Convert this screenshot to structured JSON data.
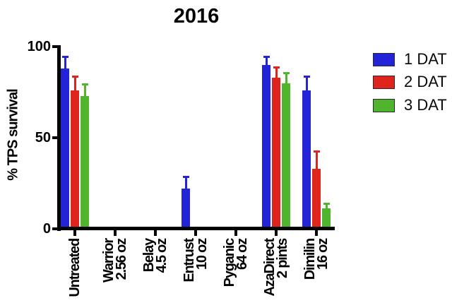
{
  "chart_data": {
    "type": "bar",
    "title": "2016",
    "xlabel": "",
    "ylabel": "% TPS survival",
    "ylim": [
      0,
      100
    ],
    "yticks": [
      0,
      50,
      100
    ],
    "grid": false,
    "legend_position": "right",
    "background": "#FFFFFF",
    "axis_color": "#000000",
    "categories": [
      "Untreated",
      "Warrior\n2.56 oz",
      "Belay\n4.5 oz",
      "Entrust\n10 oz",
      "Pyganic\n64 oz",
      "AzaDirect\n2 pints",
      "Dimilin\n16 oz"
    ],
    "series": [
      {
        "name": "1 DAT",
        "color": "#2323D7",
        "values": [
          88,
          0,
          0,
          22,
          0,
          90,
          76
        ],
        "error_up": [
          7,
          0,
          0,
          7,
          0,
          5,
          8
        ]
      },
      {
        "name": "2 DAT",
        "color": "#DF231D",
        "values": [
          76,
          0,
          0,
          0,
          0,
          83,
          33
        ],
        "error_up": [
          8,
          0,
          0,
          0,
          0,
          6,
          10
        ]
      },
      {
        "name": "3 DAT",
        "color": "#50B42D",
        "values": [
          73,
          0,
          0,
          0,
          0,
          80,
          11
        ],
        "error_up": [
          7,
          0,
          0,
          0,
          0,
          6,
          3
        ]
      }
    ]
  }
}
